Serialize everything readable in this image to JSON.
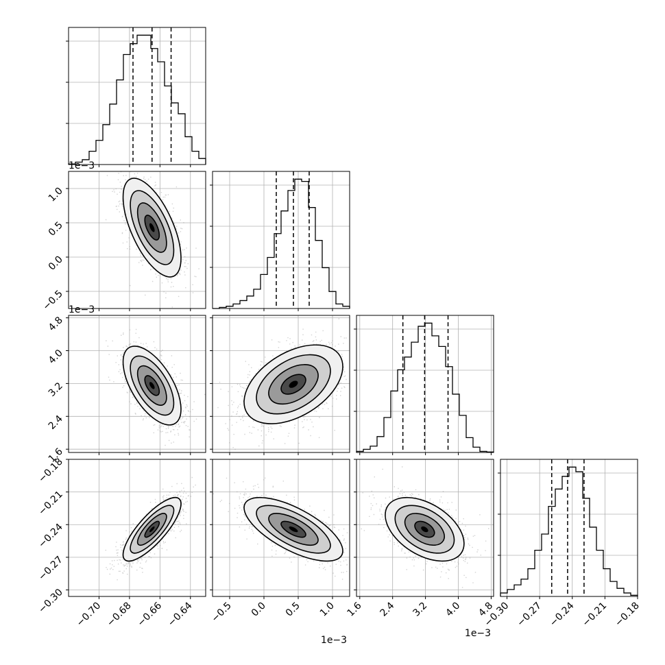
{
  "chart_data": {
    "type": "corner",
    "title": "",
    "grid": true,
    "n_params": 4,
    "params": [
      {
        "range": [
          -0.72,
          -0.63
        ],
        "ticks": [
          -0.7,
          -0.68,
          -0.66,
          -0.64
        ],
        "tick_labels": [
          "−0.70",
          "−0.68",
          "−0.66",
          "−0.64"
        ],
        "quantiles": [
          -0.6777,
          -0.6652,
          -0.6527
        ],
        "offset_label": "",
        "hist_x": [
          -0.72,
          -0.7155,
          -0.711,
          -0.7065,
          -0.702,
          -0.6975,
          -0.693,
          -0.6885,
          -0.684,
          -0.6795,
          -0.675,
          -0.6705,
          -0.666,
          -0.6615,
          -0.657,
          -0.6525,
          -0.648,
          -0.6435,
          -0.639,
          -0.6345
        ],
        "hist_y": [
          0.5,
          2,
          4,
          11,
          20,
          33,
          50,
          70,
          91,
          100,
          107,
          107,
          96,
          85,
          65,
          51,
          42,
          23,
          11,
          5
        ]
      },
      {
        "range": [
          -0.00075,
          0.00125
        ],
        "ticks": [
          -0.0005,
          0.0,
          0.0005,
          0.001
        ],
        "tick_labels": [
          "−0.5",
          "0.0",
          "0.5",
          "1.0"
        ],
        "quantiles": [
          0.00018,
          0.00043,
          0.00066
        ],
        "offset_label": "1e−3",
        "hist_x": [
          -0.00075,
          -0.00065,
          -0.00055,
          -0.00045,
          -0.00035,
          -0.00025,
          -0.00015,
          -5e-05,
          5e-05,
          0.00015,
          0.00025,
          0.00035,
          0.00045,
          0.00055,
          0.00065,
          0.00075,
          0.00085,
          0.00095,
          0.00105,
          0.00115
        ],
        "hist_y": [
          0,
          1,
          2,
          4,
          7,
          11,
          17,
          30,
          45,
          66,
          86,
          104,
          114,
          112,
          89,
          60,
          36,
          15,
          4,
          2
        ]
      },
      {
        "range": [
          0.00152,
          0.00486
        ],
        "ticks": [
          0.0016,
          0.0024,
          0.0032,
          0.004,
          0.0048
        ],
        "tick_labels": [
          "1.6",
          "2.4",
          "3.2",
          "4.0",
          "4.8"
        ],
        "quantiles": [
          0.00265,
          0.00318,
          0.00375
        ],
        "offset_label": "1e−3",
        "hist_x": [
          0.00152,
          0.001687,
          0.001854,
          0.002021,
          0.002188,
          0.002355,
          0.002522,
          0.002689,
          0.002856,
          0.003023,
          0.00319,
          0.003357,
          0.003524,
          0.003691,
          0.003858,
          0.004025,
          0.004192,
          0.004359,
          0.004526,
          0.004693
        ],
        "hist_y": [
          1,
          3,
          6,
          15,
          33,
          58,
          78,
          90,
          104,
          119,
          122,
          110,
          100,
          81,
          55,
          35,
          14,
          5,
          1,
          0.5
        ]
      },
      {
        "range": [
          -0.306,
          -0.18
        ],
        "ticks": [
          -0.3,
          -0.27,
          -0.24,
          -0.21,
          -0.18
        ],
        "tick_labels": [
          "−0.30",
          "−0.27",
          "−0.24",
          "−0.21",
          "−0.18"
        ],
        "quantiles": [
          -0.2589,
          -0.2443,
          -0.2292
        ],
        "offset_label": "",
        "hist_x": [
          -0.306,
          -0.2997,
          -0.2934,
          -0.2871,
          -0.2808,
          -0.2745,
          -0.2682,
          -0.2619,
          -0.2556,
          -0.2493,
          -0.243,
          -0.2367,
          -0.2304,
          -0.2241,
          -0.2178,
          -0.2115,
          -0.2052,
          -0.1989,
          -0.1926,
          -0.1863
        ],
        "hist_y": [
          3,
          6,
          10,
          15,
          24,
          40,
          54,
          78,
          93,
          104,
          112,
          108,
          85,
          60,
          40,
          24,
          13,
          7,
          3,
          1
        ]
      }
    ],
    "pairs": [
      {
        "row": 1,
        "col": 0,
        "center": [
          -0.6652,
          0.00043
        ],
        "sd": [
          0.0095,
          0.00036
        ],
        "rho": -0.62
      },
      {
        "row": 2,
        "col": 0,
        "center": [
          -0.6652,
          0.00315
        ],
        "sd": [
          0.0095,
          0.00048
        ],
        "rho": -0.6
      },
      {
        "row": 2,
        "col": 1,
        "center": [
          0.00043,
          0.00318
        ],
        "sd": [
          0.00036,
          0.00048
        ],
        "rho": 0.45
      },
      {
        "row": 3,
        "col": 0,
        "center": [
          -0.6652,
          -0.2443
        ],
        "sd": [
          0.0095,
          0.0146
        ],
        "rho": 0.8
      },
      {
        "row": 3,
        "col": 1,
        "center": [
          0.00043,
          -0.2443
        ],
        "sd": [
          0.00036,
          0.0146
        ],
        "rho": -0.68
      },
      {
        "row": 3,
        "col": 2,
        "center": [
          0.00318,
          -0.2443
        ],
        "sd": [
          0.00048,
          0.0146
        ],
        "rho": -0.45
      }
    ]
  }
}
